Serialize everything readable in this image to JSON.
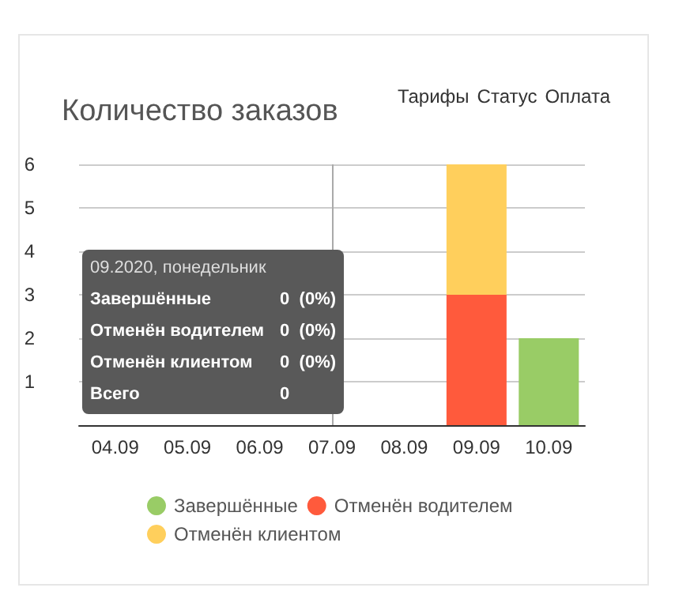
{
  "chart_data": {
    "type": "bar",
    "title": "Количество заказов",
    "stacked": true,
    "categories": [
      "04.09",
      "05.09",
      "06.09",
      "07.09",
      "08.09",
      "09.09",
      "10.09"
    ],
    "series": [
      {
        "name": "Завершённые",
        "color": "#99cc66",
        "values": [
          0,
          0,
          0,
          0,
          0,
          0,
          2
        ]
      },
      {
        "name": "Отменён водителем",
        "color": "#ff5a3c",
        "values": [
          0,
          0,
          0,
          0,
          0,
          3,
          0
        ]
      },
      {
        "name": "Отменён клиентом",
        "color": "#ffcf5c",
        "values": [
          0,
          0,
          0,
          0,
          0,
          3,
          0
        ]
      }
    ],
    "ylim": [
      0,
      6
    ],
    "yticks": [
      1,
      2,
      3,
      4,
      5,
      6
    ],
    "grid": "y",
    "legend": "bottom",
    "marker": "circle",
    "ref_lines": [
      {
        "axis": "x",
        "value": "07.09",
        "color": "#aaaaaa"
      }
    ],
    "annotations": [
      "Тарифы",
      "Статус",
      "Оплата",
      "09.2020, понедельник",
      "Завершённые",
      "0  (0%)",
      "Отменён водителем",
      "0  (0%)",
      "Отменён клиентом",
      "0  (0%)",
      "Всего",
      "0"
    ]
  }
}
